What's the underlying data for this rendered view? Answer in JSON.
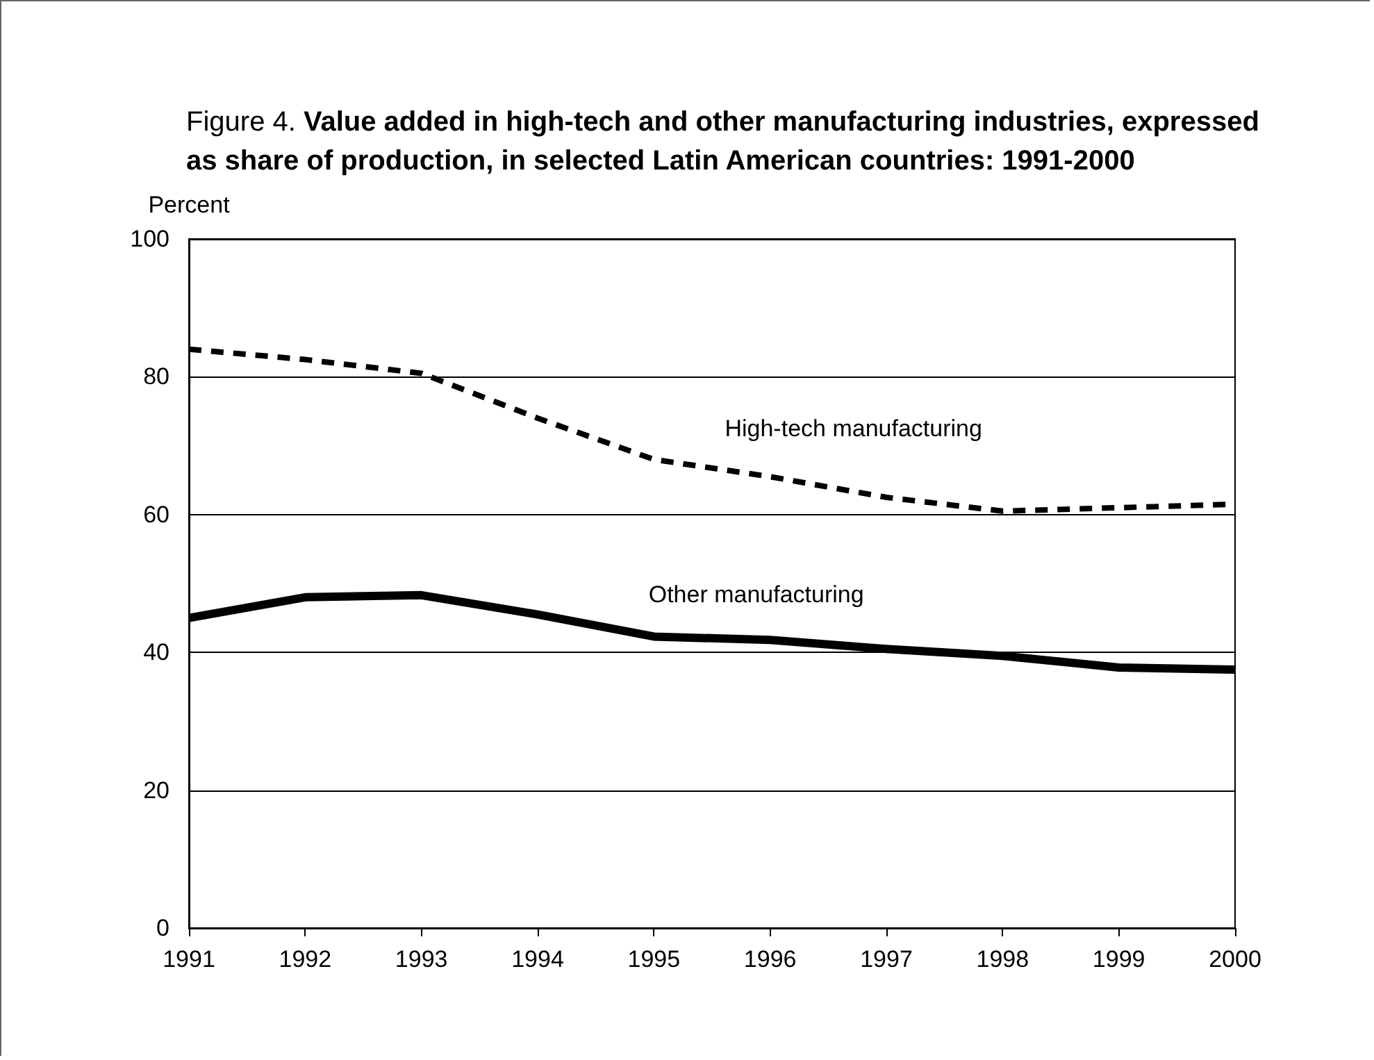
{
  "chart_data": {
    "type": "line",
    "title": "Figure 4.  Value added in high-tech and other manufacturing industries, expressed as share of production, in selected Latin American countries:  1991-2000",
    "ylabel": "Percent",
    "x": [
      1991,
      1992,
      1993,
      1994,
      1995,
      1996,
      1997,
      1998,
      1999,
      2000
    ],
    "xlim": [
      1991,
      2000
    ],
    "xticks": [
      1991,
      1992,
      1993,
      1994,
      1995,
      1996,
      1997,
      1998,
      1999,
      2000
    ],
    "ylim": [
      0,
      100
    ],
    "yticks": [
      0,
      20,
      40,
      60,
      80,
      100
    ],
    "grid": "y",
    "legend": false,
    "marker": "none",
    "series": [
      {
        "name": "High-tech manufacturing",
        "color": "#000000",
        "line_style": "dashed",
        "values": [
          84,
          82.5,
          80.5,
          74,
          68,
          65.5,
          62.5,
          60.5,
          61,
          61.5
        ]
      },
      {
        "name": "Other manufacturing",
        "color": "#000000",
        "line_style": "solid",
        "values": [
          45,
          48,
          48.3,
          45.5,
          42.3,
          41.8,
          40.5,
          39.5,
          37.8,
          37.5
        ]
      }
    ]
  }
}
